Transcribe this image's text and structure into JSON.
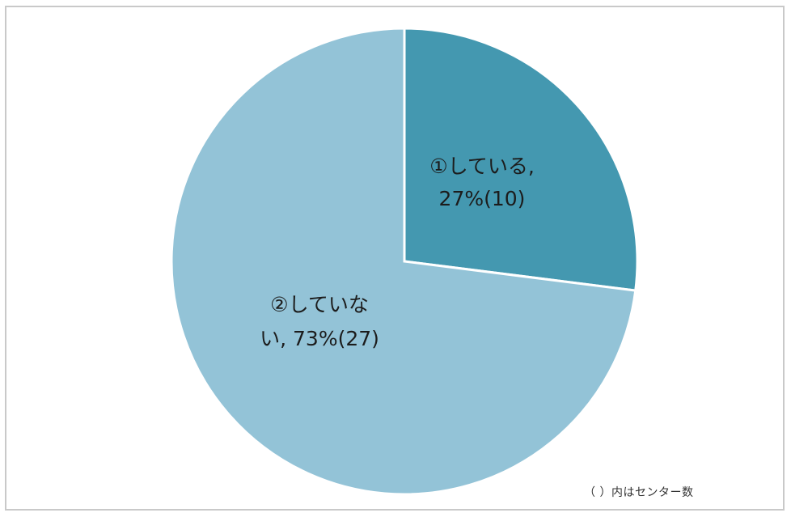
{
  "chart_data": {
    "type": "pie",
    "slices": [
      {
        "name": "①している",
        "value": 27,
        "count": 10,
        "color": "#4498b0",
        "label_lines": [
          "①している,",
          "27%(10)"
        ]
      },
      {
        "name": "②していない",
        "value": 73,
        "count": 27,
        "color": "#93c3d7",
        "label_lines": [
          "②していな",
          "い, 73%(27)"
        ]
      }
    ],
    "start_angle_deg": 0,
    "direction": "clockwise",
    "legend": "none",
    "note": "（ ）内はセンター数"
  }
}
